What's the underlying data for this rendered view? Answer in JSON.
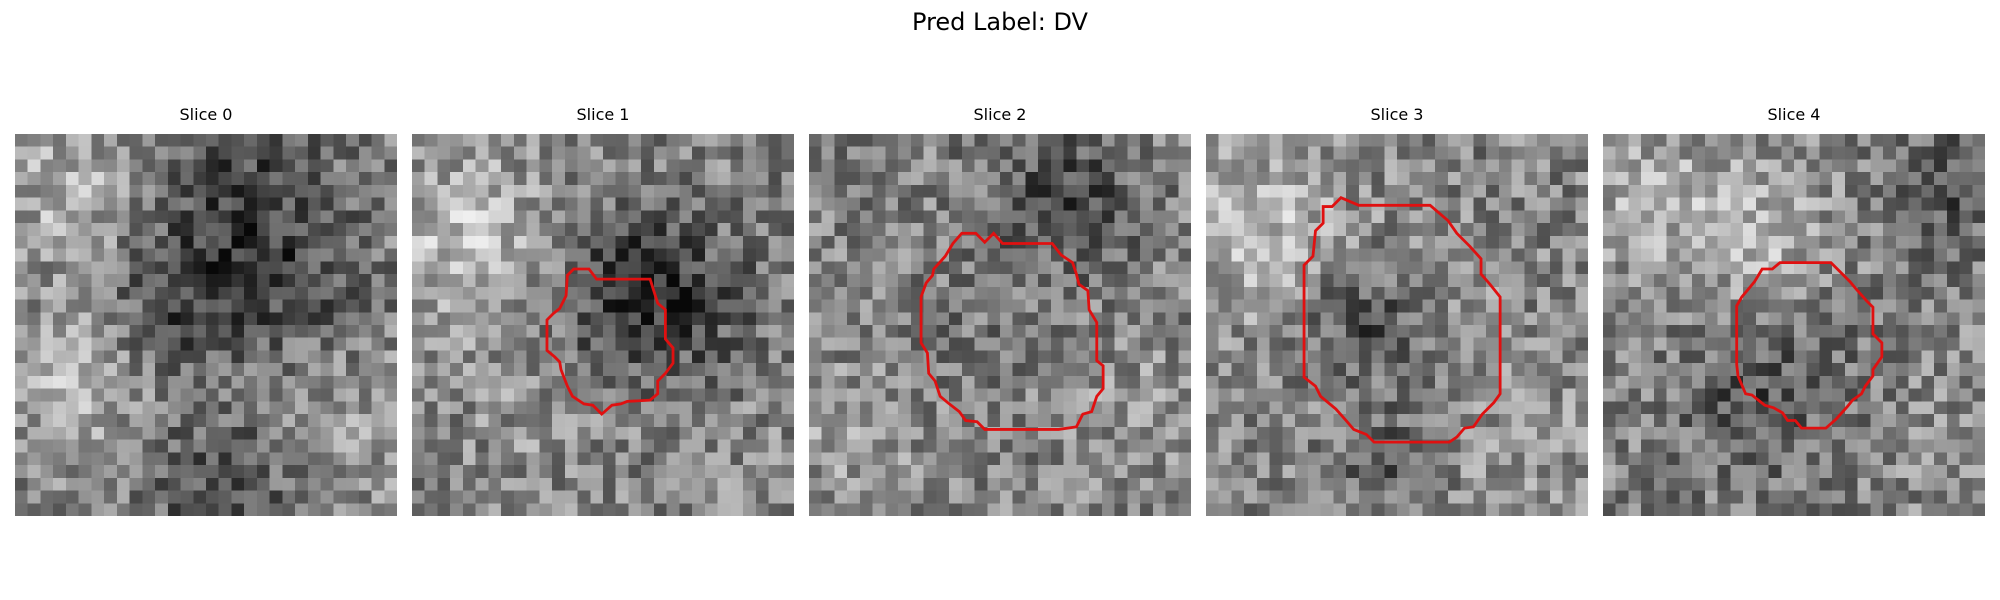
{
  "figure": {
    "title": "Pred Label: DV",
    "contour_color": "#e01010"
  },
  "slices": [
    {
      "title": "Slice 0",
      "has_contour": false,
      "seed": 11
    },
    {
      "title": "Slice 1",
      "has_contour": true,
      "seed": 23
    },
    {
      "title": "Slice 2",
      "has_contour": true,
      "seed": 37
    },
    {
      "title": "Slice 3",
      "has_contour": true,
      "seed": 51
    },
    {
      "title": "Slice 4",
      "has_contour": true,
      "seed": 67
    }
  ]
}
